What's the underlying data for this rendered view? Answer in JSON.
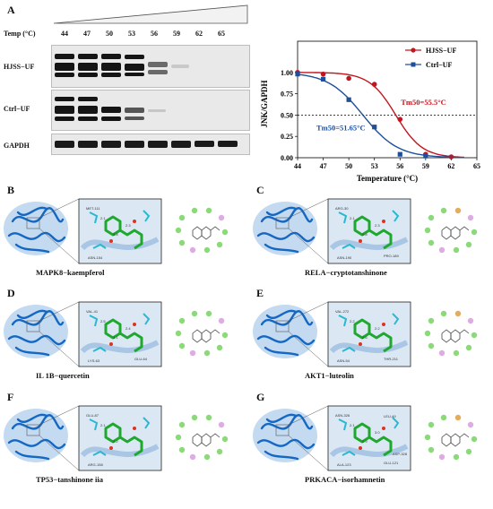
{
  "panel_a": {
    "label": "A",
    "temp_header": "Temp (°C)",
    "temps": [
      "44",
      "47",
      "50",
      "53",
      "56",
      "59",
      "62",
      "65"
    ],
    "rows": [
      "HJSS−UF",
      "Ctrl−UF",
      "GAPDH"
    ]
  },
  "chart_data": {
    "type": "line",
    "xlabel": "Temperature (°C)",
    "ylabel": "JNK/GAPDH",
    "xlim": [
      44,
      65
    ],
    "ylim": [
      0,
      1.05
    ],
    "xticks": [
      44,
      47,
      50,
      53,
      56,
      59,
      62,
      65
    ],
    "yticks": [
      0.0,
      0.25,
      0.5,
      0.75,
      1.0
    ],
    "reference_line_y": 0.5,
    "legend_position": "top-right",
    "series": [
      {
        "name": "HJSS−UF",
        "color": "#c0161f",
        "marker": "circle",
        "tm50": 55.5,
        "annotation": "Tm50=55.5°C",
        "x": [
          44,
          47,
          50,
          53,
          56,
          59,
          62
        ],
        "y": [
          1.0,
          0.98,
          0.93,
          0.86,
          0.45,
          0.04,
          0.01
        ]
      },
      {
        "name": "Ctrl−UF",
        "color": "#1f4f9a",
        "marker": "square",
        "tm50": 51.65,
        "annotation": "Tm50=51.65°C",
        "x": [
          44,
          47,
          50,
          53,
          56,
          59
        ],
        "y": [
          0.98,
          0.92,
          0.68,
          0.36,
          0.04,
          0.02
        ]
      }
    ]
  },
  "panels": [
    {
      "id": "B",
      "label": "B",
      "caption": "MAPK8−kaempferol",
      "residues": [
        "MET-111",
        "ASN-154"
      ],
      "distances": [
        "2.1",
        "3.8",
        "2.3"
      ]
    },
    {
      "id": "C",
      "label": "C",
      "caption": "RELA−cryptotanshinone",
      "residues": [
        "ARG-30",
        "ASN-190",
        "PRO-189"
      ],
      "distances": [
        "2.1",
        "2.8",
        "2.3"
      ]
    },
    {
      "id": "D",
      "label": "D",
      "caption": "IL 1B−quercetin",
      "residues": [
        "VAL-41",
        "LYS-63",
        "GLU-64"
      ],
      "distances": [
        "2.5",
        "3.1",
        "2.4"
      ]
    },
    {
      "id": "E",
      "label": "E",
      "caption": "AKT1−luteolin",
      "residues": [
        "VAL-272",
        "ASN-54",
        "THR-211"
      ],
      "distances": [
        "2.2",
        "2.6",
        "2.2"
      ]
    },
    {
      "id": "F",
      "label": "F",
      "caption": "TP53−tanshinone iia",
      "residues": [
        "GLU-87",
        "ARG-158"
      ],
      "distances": [
        "2.1",
        "2.2"
      ]
    },
    {
      "id": "G",
      "label": "G",
      "caption": "PRKACA−isorhamnetin",
      "residues": [
        "ASN-326",
        "ALA-123",
        "GLU-121",
        "LEU-49",
        "ASP-328"
      ],
      "distances": [
        "2.1",
        "2.9",
        "3.0"
      ]
    }
  ]
}
